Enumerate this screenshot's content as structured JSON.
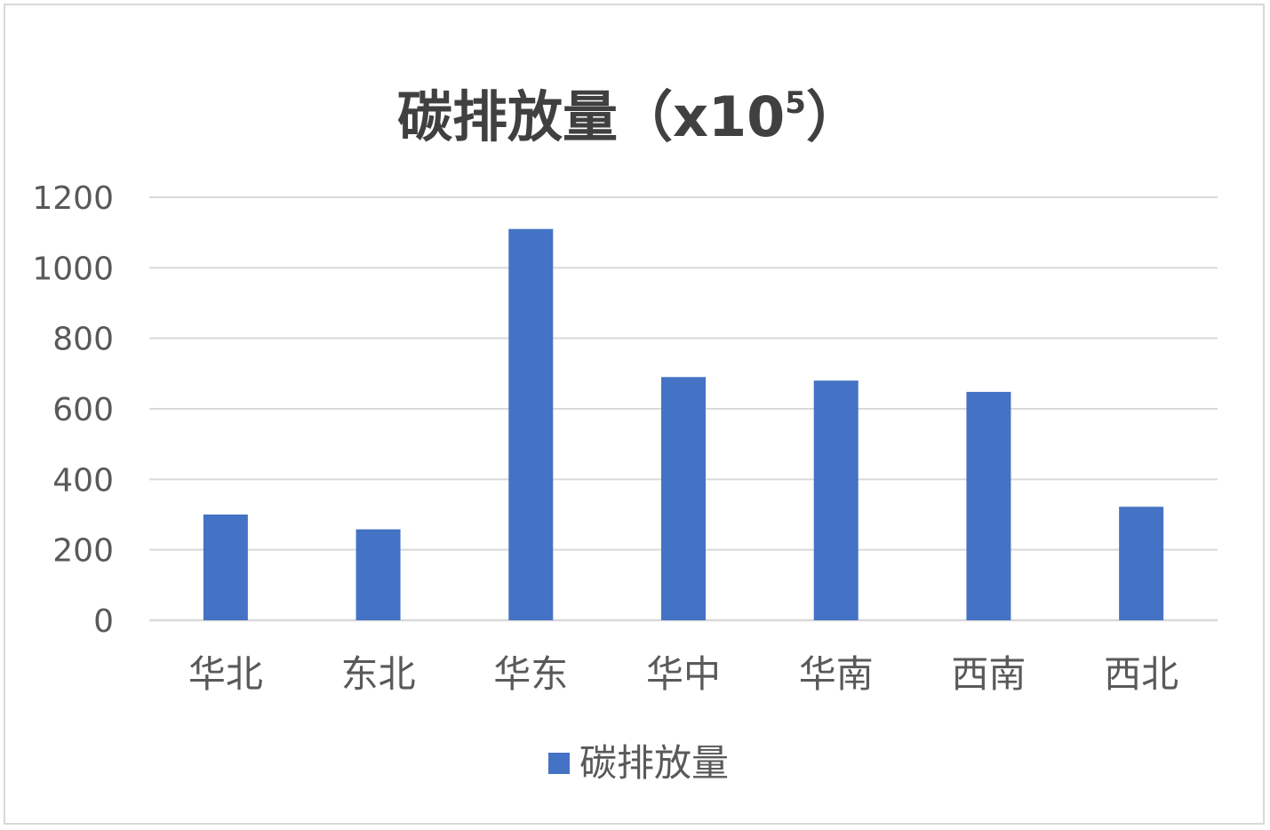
{
  "chart_data": {
    "type": "bar",
    "title": "碳排放量（x10",
    "title_superscript": "5",
    "title_suffix": "）",
    "categories": [
      "华北",
      "东北",
      "华东",
      "华中",
      "华南",
      "西南",
      "西北"
    ],
    "series": [
      {
        "name": "碳排放量",
        "values": [
          300,
          258,
          1110,
          690,
          680,
          648,
          322
        ],
        "color": "#4472c4"
      }
    ],
    "yticks": [
      "0",
      "200",
      "400",
      "600",
      "800",
      "1000",
      "1200"
    ],
    "ylim": [
      0,
      1200
    ],
    "xlabel": "",
    "ylabel": "",
    "grid": true,
    "legend": "bottom-center"
  }
}
